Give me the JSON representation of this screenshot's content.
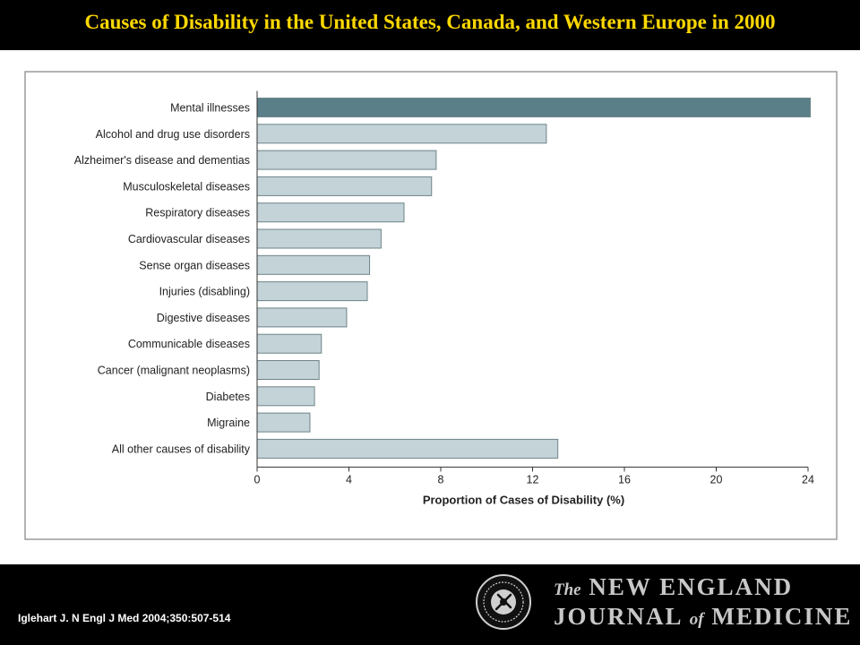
{
  "slide": {
    "title": "Causes of Disability in the United States, Canada, and Western Europe in 2000",
    "citation": "Iglehart J. N Engl J Med 2004;350:507-514",
    "journal_logo": {
      "the": "The",
      "line1": "NEW ENGLAND",
      "journal": "JOURNAL",
      "of": "of",
      "medicine": "MEDICINE"
    },
    "colors": {
      "title": "#FFD800",
      "background": "#000000",
      "panel": "#FFFFFF",
      "highlight_bar": "#5A7F89",
      "bar": "#C3D3D7",
      "bar_border": "#6E8488"
    }
  },
  "chart_data": {
    "type": "bar",
    "orientation": "horizontal",
    "title": "",
    "xlabel": "Proportion of Cases of Disability (%)",
    "ylabel": "",
    "xlim": [
      0,
      24
    ],
    "xticks": [
      0,
      4,
      8,
      12,
      16,
      20,
      24
    ],
    "grid": false,
    "legend": "none",
    "categories": [
      "Mental illnesses",
      "Alcohol and drug use disorders",
      "Alzheimer's disease and dementias",
      "Musculoskeletal diseases",
      "Respiratory diseases",
      "Cardiovascular diseases",
      "Sense organ diseases",
      "Injuries (disabling)",
      "Digestive diseases",
      "Communicable diseases",
      "Cancer (malignant neoplasms)",
      "Diabetes",
      "Migraine",
      "All other causes of disability"
    ],
    "values": [
      24.1,
      12.6,
      7.8,
      7.6,
      6.4,
      5.4,
      4.9,
      4.8,
      3.9,
      2.8,
      2.7,
      2.5,
      2.3,
      13.1
    ],
    "highlighted": [
      "Mental illnesses"
    ]
  }
}
